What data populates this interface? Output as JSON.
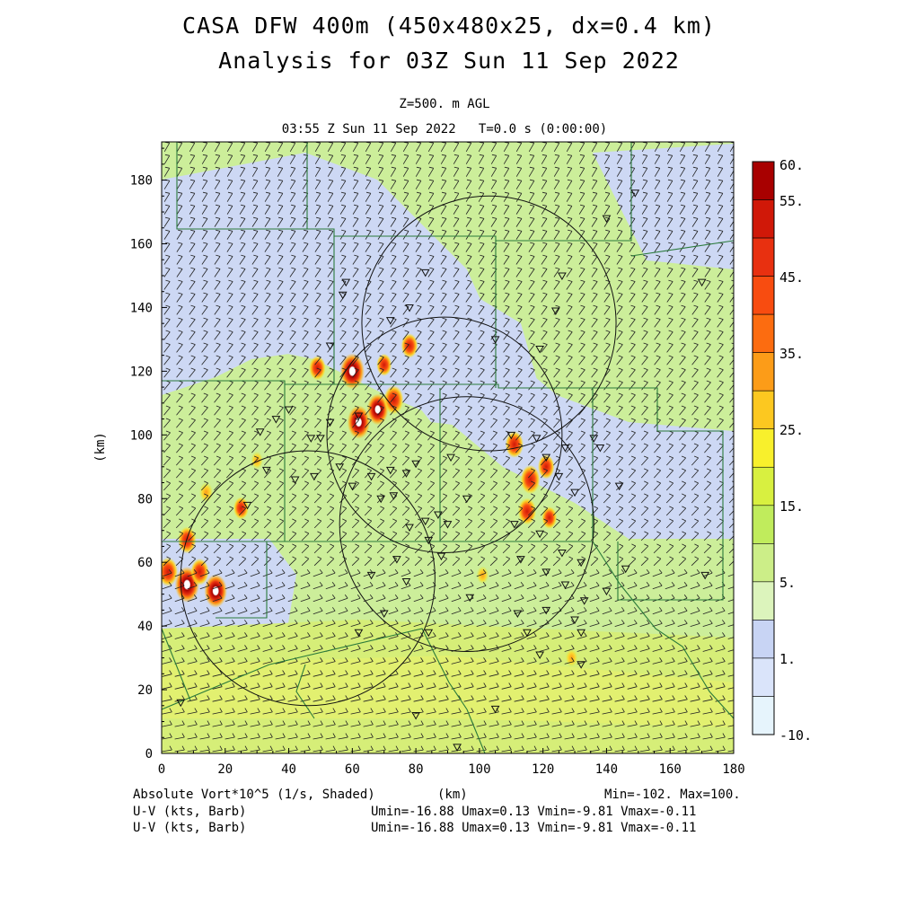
{
  "title": {
    "line1": "CASA DFW 400m (450x480x25, dx=0.4 km)",
    "line2": "Analysis for 03Z Sun 11 Sep 2022"
  },
  "subtitle": {
    "level": "Z=500. m AGL",
    "time": "03:55 Z Sun 11 Sep 2022   T=0.0 s (0:00:00)"
  },
  "axes": {
    "xlabel": "(km)",
    "ylabel": "(km)",
    "xlim": [
      0,
      180
    ],
    "ylim": [
      0,
      192
    ],
    "xticks": [
      "0",
      "20",
      "40",
      "60",
      "80",
      "100",
      "120",
      "140",
      "160",
      "180"
    ],
    "yticks": [
      "0",
      "20",
      "40",
      "60",
      "80",
      "100",
      "120",
      "140",
      "160",
      "180"
    ]
  },
  "colorbar": {
    "labels": [
      "60.",
      "55.",
      "45.",
      "35.",
      "25.",
      "15.",
      "5.",
      "1.",
      "-10."
    ],
    "colors": [
      "#a80000",
      "#d01808",
      "#e83010",
      "#f84c10",
      "#fc6c10",
      "#fc9c18",
      "#fcc820",
      "#f8f02c",
      "#d8f040",
      "#c0ec5c",
      "#ccee88",
      "#dcf4bc",
      "#c8d4f4",
      "#dae4fa",
      "#e6f4fc"
    ]
  },
  "footer": {
    "field": "Absolute Vort*10^5 (1/s, Shaded)",
    "unit": "(km)",
    "minmax": "Min=-102. Max=100.",
    "wind1_label": "U-V (kts, Barb)",
    "wind1_stats": "Umin=-16.88 Umax=0.13 Vmin=-9.81 Vmax=-0.11",
    "wind2_label": "U-V (kts, Barb)",
    "wind2_stats": "Umin=-16.88 Umax=0.13 Vmin=-9.81 Vmax=-0.11"
  },
  "map_data": {
    "radar_rings_km": [
      {
        "cx": 103,
        "cy": 135,
        "r": 40
      },
      {
        "cx": 89,
        "cy": 100,
        "r": 37
      },
      {
        "cx": 96,
        "cy": 72,
        "r": 40
      },
      {
        "cx": 46,
        "cy": 55,
        "r": 40
      }
    ],
    "vorticity_cores_km": [
      {
        "x": 60,
        "y": 120,
        "value": 60
      },
      {
        "x": 62,
        "y": 104,
        "value": 55
      },
      {
        "x": 68,
        "y": 108,
        "value": 50
      },
      {
        "x": 73,
        "y": 111,
        "value": 45
      },
      {
        "x": 78,
        "y": 128,
        "value": 35
      },
      {
        "x": 70,
        "y": 122,
        "value": 30
      },
      {
        "x": 111,
        "y": 97,
        "value": 40
      },
      {
        "x": 116,
        "y": 86,
        "value": 45
      },
      {
        "x": 121,
        "y": 90,
        "value": 35
      },
      {
        "x": 115,
        "y": 76,
        "value": 40
      },
      {
        "x": 122,
        "y": 74,
        "value": 30
      },
      {
        "x": 8,
        "y": 53,
        "value": 60
      },
      {
        "x": 17,
        "y": 51,
        "value": 55
      },
      {
        "x": 2,
        "y": 57,
        "value": 45
      },
      {
        "x": 12,
        "y": 57,
        "value": 40
      },
      {
        "x": 8,
        "y": 67,
        "value": 40
      },
      {
        "x": 25,
        "y": 77,
        "value": 30
      },
      {
        "x": 14,
        "y": 82,
        "value": 25
      },
      {
        "x": 30,
        "y": 92,
        "value": 20
      },
      {
        "x": 49,
        "y": 121,
        "value": 35
      },
      {
        "x": 101,
        "y": 56,
        "value": 20
      },
      {
        "x": 129,
        "y": 30,
        "value": 20
      }
    ]
  }
}
